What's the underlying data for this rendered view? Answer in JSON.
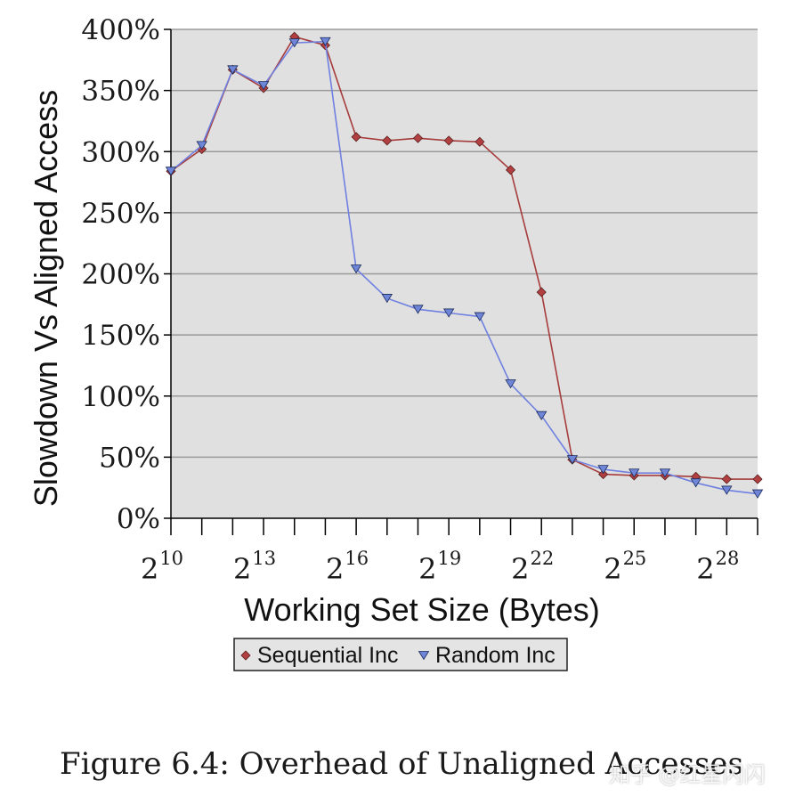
{
  "chart_data": {
    "type": "line",
    "title": "",
    "xlabel": "Working Set Size (Bytes)",
    "ylabel": "Slowdown Vs Aligned Access",
    "x_exponents": [
      10,
      11,
      12,
      13,
      14,
      15,
      16,
      17,
      18,
      19,
      20,
      21,
      22,
      23,
      24,
      25,
      26,
      27,
      28,
      29
    ],
    "xlim": [
      10,
      29
    ],
    "ylim": [
      0,
      400
    ],
    "y_ticks": [
      0,
      50,
      100,
      150,
      200,
      250,
      300,
      350,
      400
    ],
    "y_tick_labels": [
      "0%",
      "50%",
      "100%",
      "150%",
      "200%",
      "250%",
      "300%",
      "350%",
      "400%"
    ],
    "x_tick_labels": [
      {
        "exp": 10,
        "base": "2",
        "sup": "10"
      },
      {
        "exp": 13,
        "base": "2",
        "sup": "13"
      },
      {
        "exp": 16,
        "base": "2",
        "sup": "16"
      },
      {
        "exp": 19,
        "base": "2",
        "sup": "19"
      },
      {
        "exp": 22,
        "base": "2",
        "sup": "22"
      },
      {
        "exp": 25,
        "base": "2",
        "sup": "25"
      },
      {
        "exp": 28,
        "base": "2",
        "sup": "28"
      }
    ],
    "grid": true,
    "legend_position": "bottom",
    "series": [
      {
        "name": "Sequential Inc",
        "marker": "diamond",
        "color": "#a63c3c",
        "fill": "#b24040",
        "values": [
          284,
          302,
          367,
          352,
          394,
          387,
          312,
          309,
          311,
          309,
          308,
          285,
          185,
          48,
          36,
          35,
          35,
          34,
          32,
          32
        ]
      },
      {
        "name": "Random Inc",
        "marker": "triangle-down",
        "color": "#6f80e0",
        "fill": "#6f86d8",
        "values": [
          284,
          305,
          367,
          354,
          389,
          390,
          204,
          180,
          171,
          168,
          165,
          110,
          84,
          48,
          40,
          37,
          37,
          29,
          23,
          20
        ]
      }
    ]
  },
  "colors": {
    "plot_background": "#e0e0e0",
    "grid": "#9a9a9a",
    "axis": "#000000"
  },
  "caption": "Figure 6.4: Overhead of Unaligned Accesses",
  "watermark": "知乎 @红星闪闪"
}
